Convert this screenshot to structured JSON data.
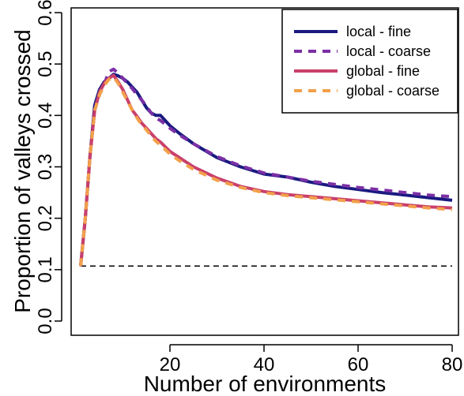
{
  "chart_data": {
    "type": "line",
    "xlabel": "Number of environments",
    "ylabel": "Proportion of valleys crossed",
    "xlim": [
      0,
      80
    ],
    "ylim": [
      0.0,
      0.6
    ],
    "x_ticks": [
      "20",
      "40",
      "60",
      "80"
    ],
    "y_ticks": [
      "0.0",
      "0.1",
      "0.2",
      "0.3",
      "0.4",
      "0.5",
      "0.6"
    ],
    "grid": false,
    "legend_position": "top-right",
    "reference_line": {
      "y": 0.107,
      "style": "dashed",
      "color": "#000000"
    },
    "series": [
      {
        "name": "local - fine",
        "color": "#1a1a80",
        "dashed": false,
        "points": [
          [
            1,
            0.107
          ],
          [
            2,
            0.2
          ],
          [
            3,
            0.32
          ],
          [
            4,
            0.42
          ],
          [
            5,
            0.45
          ],
          [
            6,
            0.465
          ],
          [
            7,
            0.472
          ],
          [
            8,
            0.48
          ],
          [
            9,
            0.477
          ],
          [
            10,
            0.472
          ],
          [
            11,
            0.465
          ],
          [
            12,
            0.455
          ],
          [
            13,
            0.445
          ],
          [
            14,
            0.43
          ],
          [
            15,
            0.415
          ],
          [
            16,
            0.405
          ],
          [
            17,
            0.4
          ],
          [
            18,
            0.4
          ],
          [
            20,
            0.38
          ],
          [
            22,
            0.365
          ],
          [
            25,
            0.345
          ],
          [
            30,
            0.318
          ],
          [
            35,
            0.3
          ],
          [
            40,
            0.286
          ],
          [
            45,
            0.28
          ],
          [
            50,
            0.27
          ],
          [
            55,
            0.262
          ],
          [
            60,
            0.256
          ],
          [
            65,
            0.25
          ],
          [
            70,
            0.245
          ],
          [
            75,
            0.24
          ],
          [
            80,
            0.235
          ]
        ]
      },
      {
        "name": "local - coarse",
        "color": "#7b2fa6",
        "dashed": true,
        "points": [
          [
            1,
            0.107
          ],
          [
            2,
            0.2
          ],
          [
            3,
            0.32
          ],
          [
            4,
            0.41
          ],
          [
            5,
            0.44
          ],
          [
            6,
            0.46
          ],
          [
            7,
            0.485
          ],
          [
            8,
            0.49
          ],
          [
            9,
            0.482
          ],
          [
            10,
            0.472
          ],
          [
            11,
            0.462
          ],
          [
            12,
            0.452
          ],
          [
            13,
            0.44
          ],
          [
            14,
            0.43
          ],
          [
            15,
            0.418
          ],
          [
            16,
            0.405
          ],
          [
            17,
            0.395
          ],
          [
            18,
            0.39
          ],
          [
            20,
            0.375
          ],
          [
            22,
            0.362
          ],
          [
            25,
            0.345
          ],
          [
            30,
            0.32
          ],
          [
            35,
            0.302
          ],
          [
            40,
            0.288
          ],
          [
            45,
            0.28
          ],
          [
            50,
            0.272
          ],
          [
            55,
            0.266
          ],
          [
            60,
            0.26
          ],
          [
            65,
            0.255
          ],
          [
            70,
            0.25
          ],
          [
            75,
            0.245
          ],
          [
            80,
            0.242
          ]
        ]
      },
      {
        "name": "global - fine",
        "color": "#c9406b",
        "dashed": false,
        "points": [
          [
            1,
            0.107
          ],
          [
            2,
            0.2
          ],
          [
            3,
            0.32
          ],
          [
            4,
            0.41
          ],
          [
            5,
            0.445
          ],
          [
            6,
            0.462
          ],
          [
            7,
            0.472
          ],
          [
            8,
            0.478
          ],
          [
            9,
            0.465
          ],
          [
            10,
            0.45
          ],
          [
            11,
            0.43
          ],
          [
            12,
            0.41
          ],
          [
            13,
            0.398
          ],
          [
            14,
            0.385
          ],
          [
            15,
            0.375
          ],
          [
            16,
            0.365
          ],
          [
            17,
            0.355
          ],
          [
            18,
            0.348
          ],
          [
            20,
            0.33
          ],
          [
            22,
            0.318
          ],
          [
            25,
            0.3
          ],
          [
            30,
            0.278
          ],
          [
            35,
            0.262
          ],
          [
            40,
            0.252
          ],
          [
            45,
            0.246
          ],
          [
            50,
            0.242
          ],
          [
            55,
            0.238
          ],
          [
            60,
            0.234
          ],
          [
            65,
            0.23
          ],
          [
            70,
            0.226
          ],
          [
            75,
            0.222
          ],
          [
            80,
            0.22
          ]
        ]
      },
      {
        "name": "global - coarse",
        "color": "#f2a04a",
        "dashed": true,
        "points": [
          [
            1,
            0.107
          ],
          [
            2,
            0.2
          ],
          [
            3,
            0.32
          ],
          [
            4,
            0.41
          ],
          [
            5,
            0.44
          ],
          [
            6,
            0.458
          ],
          [
            7,
            0.47
          ],
          [
            8,
            0.475
          ],
          [
            9,
            0.462
          ],
          [
            10,
            0.445
          ],
          [
            11,
            0.428
          ],
          [
            12,
            0.41
          ],
          [
            13,
            0.395
          ],
          [
            14,
            0.382
          ],
          [
            15,
            0.372
          ],
          [
            16,
            0.36
          ],
          [
            17,
            0.35
          ],
          [
            18,
            0.342
          ],
          [
            20,
            0.325
          ],
          [
            22,
            0.312
          ],
          [
            25,
            0.295
          ],
          [
            30,
            0.274
          ],
          [
            35,
            0.26
          ],
          [
            40,
            0.25
          ],
          [
            45,
            0.244
          ],
          [
            50,
            0.24
          ],
          [
            55,
            0.236
          ],
          [
            60,
            0.232
          ],
          [
            65,
            0.228
          ],
          [
            70,
            0.224
          ],
          [
            75,
            0.22
          ],
          [
            80,
            0.217
          ]
        ]
      }
    ]
  }
}
